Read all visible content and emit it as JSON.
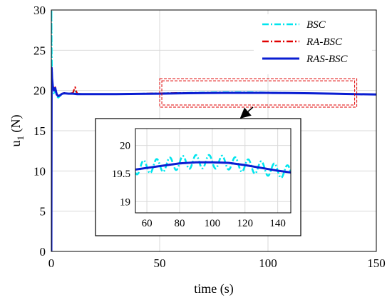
{
  "chart_data": [
    {
      "type": "line",
      "xlabel": "time (s)",
      "ylabel": "u",
      "ylabel_sub": "1",
      "ylabel_unit": " (N)",
      "xlim": [
        0,
        150
      ],
      "ylim": [
        0,
        30
      ],
      "xticks": [
        0,
        50,
        100,
        150
      ],
      "yticks": [
        0,
        5,
        10,
        15,
        20,
        25,
        30
      ],
      "grid": true,
      "legend_position": "top-right",
      "series": [
        {
          "name": "BSC",
          "color": "#00e5ee",
          "style": "dash-dot",
          "x": [
            0,
            0.1,
            0.2,
            0.4,
            0.8,
            1.2,
            1.8,
            2.5,
            3.2,
            4,
            5,
            6,
            8,
            10,
            11,
            12,
            15,
            20,
            30,
            40,
            50,
            60,
            70,
            80,
            90,
            100,
            110,
            120,
            130,
            140,
            150
          ],
          "y": [
            0,
            30,
            25,
            21,
            20.5,
            19.5,
            20.2,
            19.3,
            19.1,
            19.3,
            19.6,
            19.7,
            19.6,
            19.7,
            19.9,
            19.6,
            19.55,
            19.55,
            19.55,
            19.6,
            19.65,
            19.7,
            19.75,
            19.8,
            19.8,
            19.75,
            19.7,
            19.65,
            19.6,
            19.55,
            19.5
          ]
        },
        {
          "name": "RA-BSC",
          "color": "#e00000",
          "style": "dash-dot",
          "x": [
            0,
            0.15,
            0.35,
            0.7,
            1.2,
            1.8,
            2.5,
            3.2,
            4,
            5,
            6,
            8,
            10,
            10.5,
            11,
            11.5,
            12,
            15,
            20,
            30,
            40,
            50,
            60,
            70,
            80,
            90,
            100,
            110,
            120,
            130,
            140,
            150
          ],
          "y": [
            0,
            22.8,
            21.5,
            20.6,
            20.1,
            20.4,
            19.6,
            19.3,
            19.4,
            19.6,
            19.7,
            19.6,
            19.7,
            20.1,
            20.4,
            19.9,
            19.6,
            19.55,
            19.55,
            19.55,
            19.6,
            19.65,
            19.7,
            19.7,
            19.72,
            19.7,
            19.7,
            19.68,
            19.65,
            19.6,
            19.55,
            19.5
          ]
        },
        {
          "name": "RAS-BSC",
          "color": "#0a1ed2",
          "style": "solid",
          "x": [
            0,
            0.15,
            0.35,
            0.7,
            1.2,
            1.8,
            2.5,
            3.2,
            4,
            5,
            6,
            8,
            10,
            12,
            15,
            20,
            30,
            40,
            50,
            60,
            70,
            80,
            90,
            100,
            110,
            120,
            130,
            140,
            150
          ],
          "y": [
            0,
            22.8,
            21.5,
            20.5,
            20.0,
            20.3,
            19.5,
            19.3,
            19.4,
            19.6,
            19.65,
            19.6,
            19.6,
            19.55,
            19.55,
            19.55,
            19.55,
            19.58,
            19.6,
            19.65,
            19.68,
            19.7,
            19.7,
            19.7,
            19.68,
            19.65,
            19.6,
            19.55,
            19.5
          ]
        }
      ],
      "zoom_region": {
        "x": [
          51,
          140
        ],
        "y": [
          18.2,
          21.2
        ]
      }
    },
    {
      "type": "line",
      "role": "inset",
      "xlim": [
        53,
        148
      ],
      "ylim": [
        18.8,
        20.3
      ],
      "xticks": [
        60,
        80,
        100,
        120,
        140
      ],
      "yticks": [
        19,
        19.5,
        20
      ],
      "yticklabels": [
        "19",
        "19.5",
        "20"
      ],
      "grid": true,
      "series": [
        {
          "name": "BSC",
          "color": "#00e5ee",
          "style": "dash-dot",
          "osc_period": 8,
          "osc_amplitude": 0.12,
          "x": [
            53,
            60,
            70,
            80,
            90,
            100,
            110,
            120,
            130,
            140,
            148
          ],
          "y": [
            19.6,
            19.62,
            19.65,
            19.69,
            19.71,
            19.71,
            19.69,
            19.64,
            19.6,
            19.55,
            19.52
          ]
        },
        {
          "name": "RAS-BSC",
          "color": "#0a1ed2",
          "style": "solid",
          "x": [
            53,
            60,
            70,
            80,
            90,
            100,
            110,
            120,
            130,
            140,
            148
          ],
          "y": [
            19.57,
            19.6,
            19.64,
            19.68,
            19.7,
            19.7,
            19.69,
            19.65,
            19.6,
            19.55,
            19.52
          ]
        }
      ]
    }
  ]
}
